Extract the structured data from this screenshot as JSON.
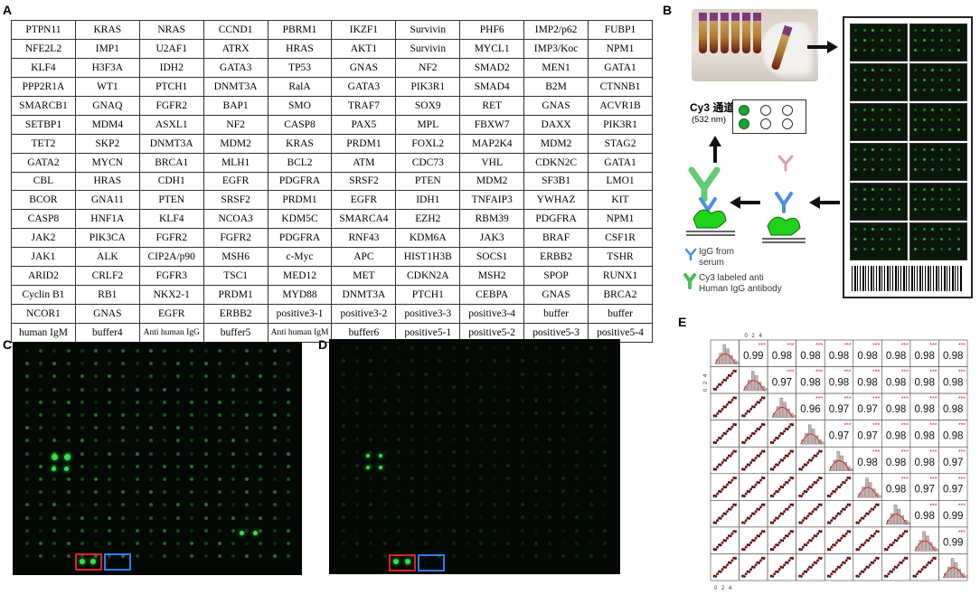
{
  "panels": {
    "a": "A",
    "b": "B",
    "c": "C",
    "d": "D",
    "e": "E"
  },
  "table_rows": [
    [
      "PTPN11",
      "KRAS",
      "NRAS",
      "CCND1",
      "PBRM1",
      "IKZF1",
      "Survivin",
      "PHF6",
      "IMP2/p62",
      "FUBP1"
    ],
    [
      "NFE2L2",
      "IMP1",
      "U2AF1",
      "ATRX",
      "HRAS",
      "AKT1",
      "Survivin",
      "MYCL1",
      "IMP3/Koc",
      "NPM1"
    ],
    [
      "KLF4",
      "H3F3A",
      "IDH2",
      "GATA3",
      "TP53",
      "GNAS",
      "NF2",
      "SMAD2",
      "MEN1",
      "GATA1"
    ],
    [
      "PPP2R1A",
      "WT1",
      "PTCH1",
      "DNMT3A",
      "RalA",
      "GATA3",
      "PIK3R1",
      "SMAD4",
      "B2M",
      "CTNNB1"
    ],
    [
      "SMARCB1",
      "GNAQ",
      "FGFR2",
      "BAP1",
      "SMO",
      "TRAF7",
      "SOX9",
      "RET",
      "GNAS",
      "ACVR1B"
    ],
    [
      "SETBP1",
      "MDM4",
      "ASXL1",
      "NF2",
      "CASP8",
      "PAX5",
      "MPL",
      "FBXW7",
      "DAXX",
      "PIK3R1"
    ],
    [
      "TET2",
      "SKP2",
      "DNMT3A",
      "MDM2",
      "KRAS",
      "PRDM1",
      "FOXL2",
      "MAP2K4",
      "MDM2",
      "STAG2"
    ],
    [
      "GATA2",
      "MYCN",
      "BRCA1",
      "MLH1",
      "BCL2",
      "ATM",
      "CDC73",
      "VHL",
      "CDKN2C",
      "GATA1"
    ],
    [
      "CBL",
      "HRAS",
      "CDH1",
      "EGFR",
      "PDGFRA",
      "SRSF2",
      "PTEN",
      "MDM2",
      "SF3B1",
      "LMO1"
    ],
    [
      "BCOR",
      "GNA11",
      "PTEN",
      "SRSF2",
      "PRDM1",
      "EGFR",
      "IDH1",
      "TNFAIP3",
      "YWHAZ",
      "KIT"
    ],
    [
      "CASP8",
      "HNF1A",
      "KLF4",
      "NCOA3",
      "KDM5C",
      "SMARCA4",
      "EZH2",
      "RBM39",
      "PDGFRA",
      "NPM1"
    ],
    [
      "JAK2",
      "PIK3CA",
      "FGFR2",
      "FGFR2",
      "PDGFRA",
      "RNF43",
      "KDM6A",
      "JAK3",
      "BRAF",
      "CSF1R"
    ],
    [
      "JAK1",
      "ALK",
      "CIP2A/p90",
      "MSH6",
      "c-Myc",
      "APC",
      "HIST1H3B",
      "SOCS1",
      "ERBB2",
      "TSHR"
    ],
    [
      "ARID2",
      "CRLF2",
      "FGFR3",
      "TSC1",
      "MED12",
      "MET",
      "CDKN2A",
      "MSH2",
      "SPOP",
      "RUNX1"
    ],
    [
      "Cyclin B1",
      "RB1",
      "NKX2-1",
      "PRDM1",
      "MYD88",
      "DNMT3A",
      "PTCH1",
      "CEBPA",
      "GNAS",
      "BRCA2"
    ],
    [
      "NCOR1",
      "GNAS",
      "EGFR",
      "ERBB2",
      "positive3-1",
      "positive3-2",
      "positive3-3",
      "positive3-4",
      "buffer",
      "buffer"
    ],
    [
      "human IgM",
      "buffer4",
      "Anti human IgG",
      "buffer5",
      "Anti human IgM",
      "buffer6",
      "positive5-1",
      "positive5-2",
      "positive5-3",
      "positive5-4"
    ]
  ],
  "panel_b": {
    "cy3_title": "Cy3 通道",
    "cy3_sub": "(532 nm)",
    "legend_igg_line1": "IgG from",
    "legend_igg_line2": "serum",
    "legend_cy3_line1": "Cy3  labeled anti",
    "legend_cy3_line2": "Human IgG antibody"
  },
  "chart_data": {
    "type": "scatter-matrix",
    "n": 9,
    "ticks": [
      "0",
      "2",
      "4"
    ],
    "significance": "***",
    "correlations_upper": [
      [
        "0.99",
        "0.98",
        "0.98",
        "0.98",
        "0.98",
        "0.98",
        "0.98",
        "0.98"
      ],
      [
        "0.97",
        "0.98",
        "0.98",
        "0.98",
        "0.98",
        "0.98",
        "0.98"
      ],
      [
        "0.96",
        "0.97",
        "0.97",
        "0.98",
        "0.98",
        "0.98"
      ],
      [
        "0.97",
        "0.97",
        "0.98",
        "0.98",
        "0.98"
      ],
      [
        "0.98",
        "0.98",
        "0.98",
        "0.97"
      ],
      [
        "0.98",
        "0.97",
        "0.97"
      ],
      [
        "0.98",
        "0.99"
      ],
      [
        "0.99"
      ]
    ]
  },
  "colors": {
    "spot_green": "#33e04a",
    "box_red": "#e02020",
    "box_blue": "#2a7fff",
    "arrow": "#111111"
  }
}
